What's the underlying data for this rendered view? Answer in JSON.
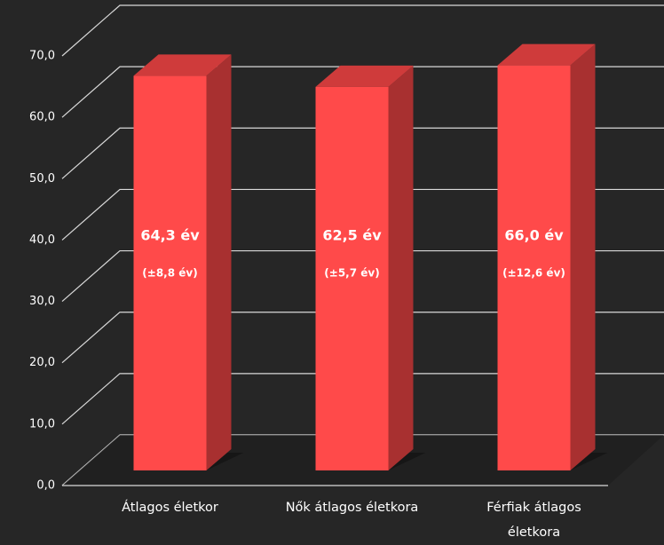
{
  "chart_data": {
    "type": "bar3d",
    "categories": [
      "Átlagos életkor",
      "Nők átlagos életkora",
      "Férfiak átlagos életkora"
    ],
    "values": [
      64.3,
      62.5,
      66.0
    ],
    "value_labels": [
      "64,3 év",
      "62,5 év",
      "66,0 év"
    ],
    "error_labels": [
      "(±8,8 év)",
      "(±5,7 év)",
      "(±12,6 év)"
    ],
    "color": "#ff4a4a",
    "ylim": [
      0,
      70
    ],
    "yticks": [
      {
        "value": 0,
        "label": "0,0"
      },
      {
        "value": 10,
        "label": "10,0"
      },
      {
        "value": 20,
        "label": "20,0"
      },
      {
        "value": 30,
        "label": "30,0"
      },
      {
        "value": 40,
        "label": "40,0"
      },
      {
        "value": 50,
        "label": "50,0"
      },
      {
        "value": 60,
        "label": "60,0"
      },
      {
        "value": 70,
        "label": "70,0"
      }
    ],
    "grid": true
  }
}
